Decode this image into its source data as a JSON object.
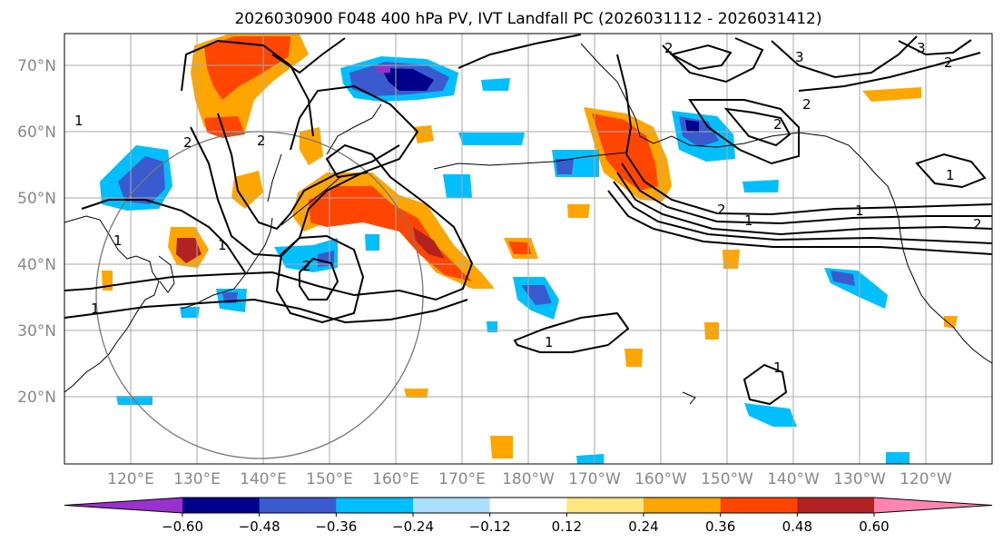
{
  "title": "2026030900 F048 400 hPa PV, IVT Landfall PC (2026031112 - 2026031412)",
  "map": {
    "lon_range": [
      110,
      250
    ],
    "lat_range": [
      10,
      75
    ],
    "lat_labels": [
      "20°N",
      "30°N",
      "40°N",
      "50°N",
      "60°N",
      "70°N"
    ],
    "lon_labels": [
      "120°E",
      "130°E",
      "140°E",
      "150°E",
      "160°E",
      "170°E",
      "180°W",
      "170°W",
      "160°W",
      "150°W",
      "140°W",
      "130°W",
      "120°W"
    ],
    "contour_labels": [
      "1",
      "2",
      "3"
    ]
  },
  "colorbar": {
    "ticks": [
      "−0.60",
      "−0.48",
      "−0.36",
      "−0.24",
      "−0.12",
      "0.12",
      "0.24",
      "0.36",
      "0.48",
      "0.60"
    ],
    "bounds": [
      -0.6,
      -0.48,
      -0.36,
      -0.24,
      -0.12,
      0.12,
      0.24,
      0.36,
      0.48,
      0.6
    ],
    "colors": [
      "#9932cc",
      "#00008b",
      "#3a5bcf",
      "#00bfff",
      "#aadfff",
      "#ffffff",
      "#ffe680",
      "#ffa500",
      "#ff4500",
      "#b22222",
      "#ff85b0"
    ],
    "under_color": "#9932cc",
    "over_color": "#ff85b0"
  }
}
